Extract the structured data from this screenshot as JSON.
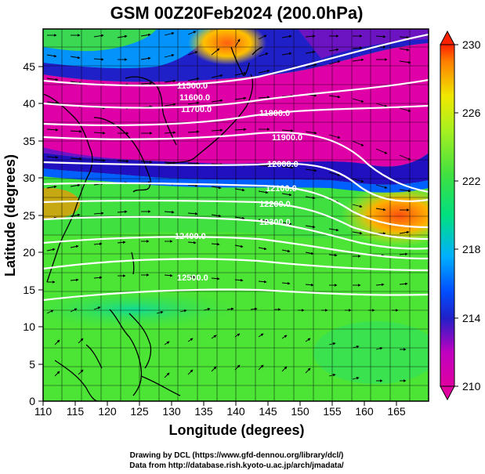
{
  "title": "GSM 00Z20Feb2024 (200.0hPa)",
  "xlabel": "Longitude (degrees)",
  "ylabel": "Latitude  (degrees)",
  "credits": [
    "Drawing by DCL (https://www.gfd-dennou.org/library/dcl/)",
    "Data from http://database.rish.kyoto-u.ac.jp/arch/jmadata/"
  ],
  "chart_data": {
    "type": "heatmap",
    "title": "GSM 00Z20Feb2024 (200.0hPa)",
    "xlabel": "Longitude (degrees)",
    "ylabel": "Latitude  (degrees)",
    "xlim": [
      110,
      170
    ],
    "ylim": [
      0,
      50
    ],
    "xticks": [
      110,
      115,
      120,
      125,
      130,
      135,
      140,
      145,
      150,
      155,
      160,
      165
    ],
    "yticks": [
      0,
      5,
      10,
      15,
      20,
      25,
      30,
      35,
      40,
      45
    ],
    "grid": true,
    "colorbar": {
      "min": 210,
      "max": 230,
      "ticks": [
        210,
        214,
        218,
        222,
        226,
        230
      ],
      "colors": [
        "#e000a0",
        "#b000c0",
        "#1010c0",
        "#0050ff",
        "#00b0ff",
        "#00e0c0",
        "#20e060",
        "#60f020",
        "#c0f020",
        "#f0f000",
        "#ff9000",
        "#ff2000"
      ],
      "placement": "right"
    },
    "contours": [
      {
        "label": "11500.0",
        "lon": 137,
        "lat": 44
      },
      {
        "label": "11600.0",
        "lon": 137,
        "lat": 42
      },
      {
        "label": "11700.0",
        "lon": 137,
        "lat": 40
      },
      {
        "label": "11800.0",
        "lon": 149,
        "lat": 39.5
      },
      {
        "label": "11900.0",
        "lon": 153,
        "lat": 36.3
      },
      {
        "label": "12000.0",
        "lon": 150,
        "lat": 32.8
      },
      {
        "label": "12100.0",
        "lon": 150,
        "lat": 29.5
      },
      {
        "label": "12200.0",
        "lon": 149,
        "lat": 27.5
      },
      {
        "label": "12300.0",
        "lon": 150,
        "lat": 25.2
      },
      {
        "label": "12400.0",
        "lon": 130,
        "lat": 22.5
      },
      {
        "label": "12500.0",
        "lon": 131,
        "lat": 16.8
      }
    ],
    "fields": [
      "temperature (K)",
      "wind vectors",
      "geopotential height (m)"
    ]
  }
}
